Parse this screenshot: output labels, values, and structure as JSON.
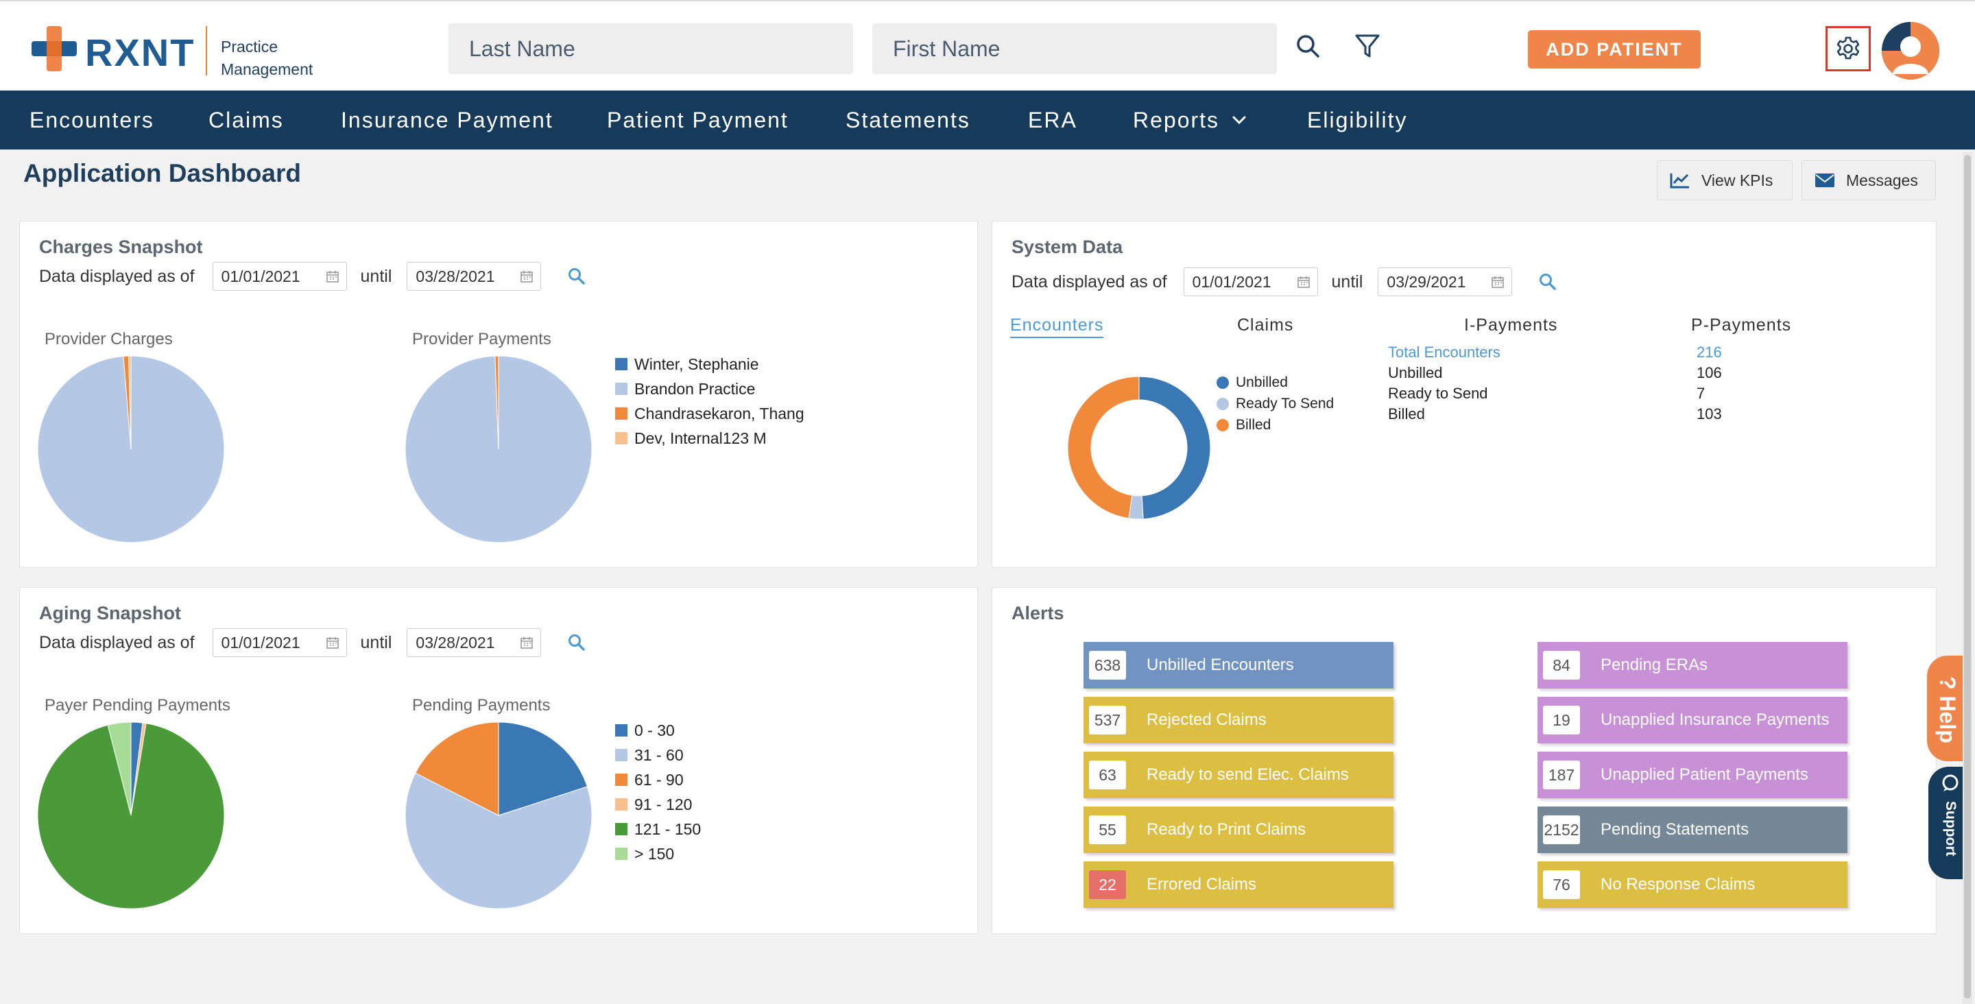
{
  "brand": {
    "name": "RXNT",
    "subtitle_line1": "Practice",
    "subtitle_line2": "Management",
    "colors": {
      "navy": "#163a5a",
      "blue": "#1f5c94",
      "orange": "#f0854a"
    }
  },
  "header": {
    "last_name_placeholder": "Last Name",
    "first_name_placeholder": "First Name",
    "add_patient_label": "ADD PATIENT"
  },
  "nav": {
    "items": [
      {
        "label": "Encounters"
      },
      {
        "label": "Claims"
      },
      {
        "label": "Insurance Payment"
      },
      {
        "label": "Patient Payment"
      },
      {
        "label": "Statements"
      },
      {
        "label": "ERA"
      },
      {
        "label": "Reports"
      },
      {
        "label": "Eligibility"
      }
    ]
  },
  "page": {
    "title": "Application Dashboard",
    "view_kpis_label": "View KPIs",
    "messages_label": "Messages"
  },
  "charges": {
    "title": "Charges Snapshot",
    "date_prefix": "Data displayed as of",
    "from": "01/01/2021",
    "until_label": "until",
    "to": "03/28/2021",
    "chart1_label": "Provider Charges",
    "chart2_label": "Provider Payments",
    "legend": [
      {
        "label": "Winter, Stephanie",
        "color": "#3a78b5"
      },
      {
        "label": "Brandon Practice",
        "color": "#b4c8e6"
      },
      {
        "label": "Chandrasekaron, Thang",
        "color": "#f0893a"
      },
      {
        "label": "Dev, Internal123 M",
        "color": "#f7c08c"
      }
    ]
  },
  "system": {
    "title": "System Data",
    "date_prefix": "Data displayed as of",
    "from": "01/01/2021",
    "until_label": "until",
    "to": "03/29/2021",
    "tabs": [
      "Encounters",
      "Claims",
      "I-Payments",
      "P-Payments"
    ],
    "legend": [
      {
        "label": "Unbilled",
        "color": "#3a78b5"
      },
      {
        "label": "Ready To Send",
        "color": "#b4c8e6"
      },
      {
        "label": "Billed",
        "color": "#f0893a"
      }
    ],
    "stats": [
      {
        "label": "Total Encounters",
        "value": "216"
      },
      {
        "label": "Unbilled",
        "value": "106"
      },
      {
        "label": "Ready to Send",
        "value": "7"
      },
      {
        "label": "Billed",
        "value": "103"
      }
    ]
  },
  "aging": {
    "title": "Aging Snapshot",
    "date_prefix": "Data displayed as of",
    "from": "01/01/2021",
    "until_label": "until",
    "to": "03/28/2021",
    "chart1_label": "Payer Pending Payments",
    "chart2_label": "Pending Payments",
    "legend": [
      {
        "label": "0 - 30",
        "color": "#3a78b5"
      },
      {
        "label": "31 - 60",
        "color": "#b4c8e6"
      },
      {
        "label": "61 - 90",
        "color": "#f0893a"
      },
      {
        "label": "91 - 120",
        "color": "#f7c08c"
      },
      {
        "label": "121 - 150",
        "color": "#4a9a3a"
      },
      {
        "label": "> 150",
        "color": "#a8dc96"
      }
    ]
  },
  "alerts": {
    "title": "Alerts",
    "left": [
      {
        "count": "638",
        "label": "Unbilled Encounters",
        "color": "#7093c2"
      },
      {
        "count": "537",
        "label": "Rejected Claims",
        "color": "#dcbe42"
      },
      {
        "count": "63",
        "label": "Ready to send Elec. Claims",
        "color": "#dcbe42"
      },
      {
        "count": "55",
        "label": "Ready to Print Claims",
        "color": "#dcbe42"
      },
      {
        "count": "22",
        "label": "Errored Claims",
        "color": "#dcbe42"
      }
    ],
    "right": [
      {
        "count": "84",
        "label": "Pending ERAs",
        "color": "#c890d6"
      },
      {
        "count": "19",
        "label": "Unapplied Insurance Payments",
        "color": "#c890d6"
      },
      {
        "count": "187",
        "label": "Unapplied Patient Payments",
        "color": "#c890d6"
      },
      {
        "count": "2152",
        "label": "Pending Statements",
        "color": "#748897"
      },
      {
        "count": "76",
        "label": "No Response Claims",
        "color": "#dcbe42"
      }
    ]
  },
  "side": {
    "help_label": "? Help",
    "support_label": "Support"
  },
  "chart_data": [
    {
      "type": "pie",
      "title": "Provider Charges",
      "categories": [
        "Winter, Stephanie",
        "Brandon Practice",
        "Chandrasekaron, Thang",
        "Dev, Internal123 M"
      ],
      "values": [
        0,
        98.7,
        0.9,
        0.4
      ]
    },
    {
      "type": "pie",
      "title": "Provider Payments",
      "categories": [
        "Winter, Stephanie",
        "Brandon Practice",
        "Chandrasekaron, Thang",
        "Dev, Internal123 M"
      ],
      "values": [
        0,
        99.4,
        0.6,
        0
      ]
    },
    {
      "type": "pie",
      "title": "Encounters",
      "categories": [
        "Unbilled",
        "Ready To Send",
        "Billed"
      ],
      "values": [
        106,
        7,
        103
      ]
    },
    {
      "type": "pie",
      "title": "Payer Pending Payments",
      "categories": [
        "0 - 30",
        "31 - 60",
        "61 - 90",
        "91 - 120",
        "121 - 150",
        "> 150"
      ],
      "values": [
        2.0,
        0,
        0,
        0.6,
        93.4,
        4.0
      ]
    },
    {
      "type": "pie",
      "title": "Pending Payments",
      "categories": [
        "0 - 30",
        "31 - 60",
        "61 - 90",
        "91 - 120",
        "121 - 150",
        "> 150"
      ],
      "values": [
        20,
        62.5,
        17.5,
        0,
        0,
        0
      ]
    }
  ]
}
